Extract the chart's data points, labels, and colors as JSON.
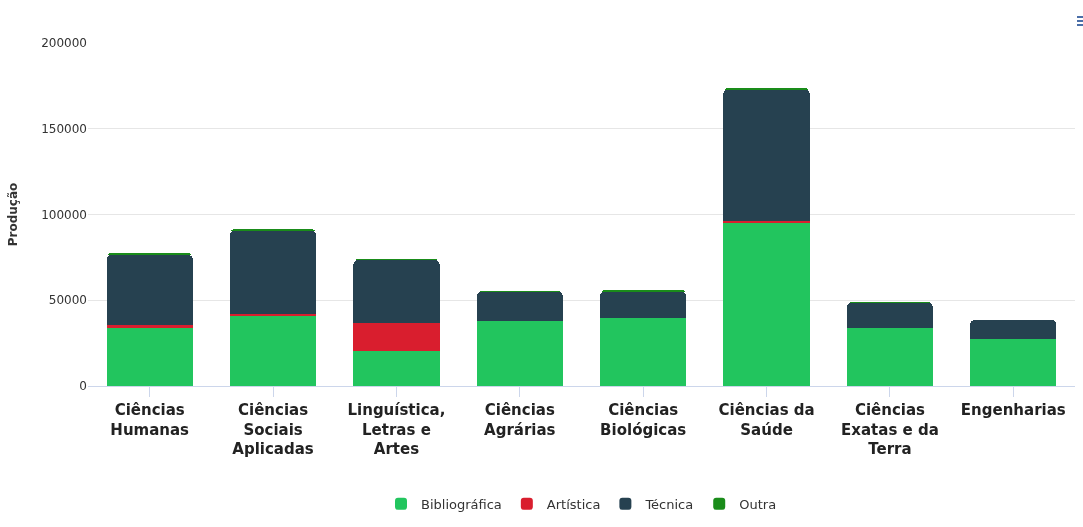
{
  "chart_data": {
    "type": "bar",
    "ylabel": "Produção",
    "stacked": true,
    "categories": [
      "Ciências Humanas",
      "Ciências Sociais Aplicadas",
      "Linguística, Letras e Artes",
      "Ciências Agrárias",
      "Ciências Biológicas",
      "Ciências da Saúde",
      "Ciências Exatas e da Terra",
      "Engenharias"
    ],
    "series": [
      {
        "name": "Bibliográfica",
        "color": "#22c55e",
        "values": [
          34000,
          41000,
          20500,
          38000,
          39500,
          95500,
          34000,
          27600
        ]
      },
      {
        "name": "Artística",
        "color": "#d91e2e",
        "values": [
          1500,
          1200,
          16000,
          null,
          null,
          600,
          null,
          null
        ]
      },
      {
        "name": "Técnica",
        "color": "#264150",
        "values": [
          41000,
          48500,
          37000,
          17000,
          15700,
          76500,
          14500,
          11000
        ]
      },
      {
        "name": "Outra",
        "color": "#1a8c1a",
        "values": [
          500,
          500,
          500,
          300,
          300,
          600,
          300,
          null
        ]
      }
    ],
    "ylim": [
      0,
      200000
    ],
    "yticks": [
      0,
      50000,
      100000,
      150000,
      200000
    ],
    "grid": "y",
    "legend": "bottom"
  }
}
